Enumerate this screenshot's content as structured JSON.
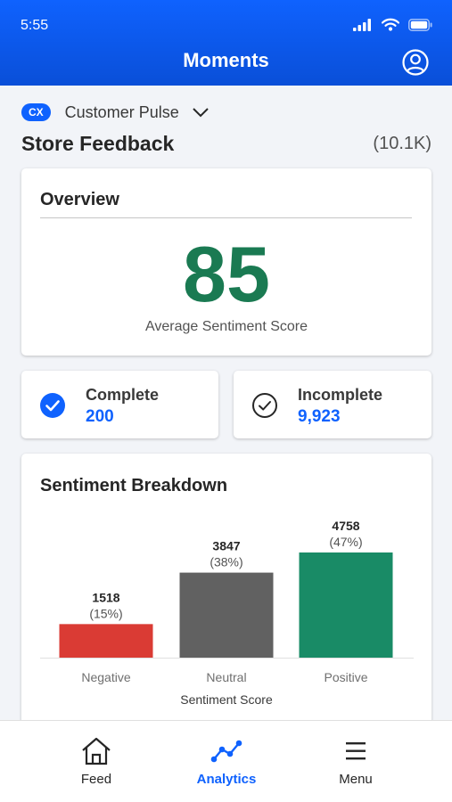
{
  "status_bar": {
    "time": "5:55"
  },
  "header": {
    "title": "Moments"
  },
  "context": {
    "badge": "CX",
    "name": "Customer Pulse"
  },
  "store": {
    "title": "Store Feedback",
    "count": "(10.1K)"
  },
  "overview": {
    "title": "Overview",
    "score": "85",
    "score_label": "Average Sentiment Score"
  },
  "stats": [
    {
      "label": "Complete",
      "value": "200"
    },
    {
      "label": "Incomplete",
      "value": "9,923"
    }
  ],
  "breakdown": {
    "title": "Sentiment Breakdown"
  },
  "chart_data": {
    "type": "bar",
    "title": "Sentiment Breakdown",
    "categories": [
      "Negative",
      "Neutral",
      "Positive"
    ],
    "values": [
      1518,
      3847,
      4758
    ],
    "data_labels": [
      "1518",
      "3847",
      "4758"
    ],
    "percent_labels": [
      "(15%)",
      "(38%)",
      "(47%)"
    ],
    "colors": [
      "#da3b34",
      "#616161",
      "#198b66"
    ],
    "xlabel": "Sentiment Score",
    "ylabel": "",
    "ylim": [
      0,
      4758
    ],
    "grid": false,
    "legend": "none"
  },
  "tabs": [
    {
      "label": "Feed",
      "icon": "home-icon",
      "active": false
    },
    {
      "label": "Analytics",
      "icon": "analytics-line-icon",
      "active": true
    },
    {
      "label": "Menu",
      "icon": "hamburger-menu-icon",
      "active": false
    }
  ],
  "colors": {
    "brand_blue": "#0f62fe",
    "score_green": "#1a7a52"
  }
}
